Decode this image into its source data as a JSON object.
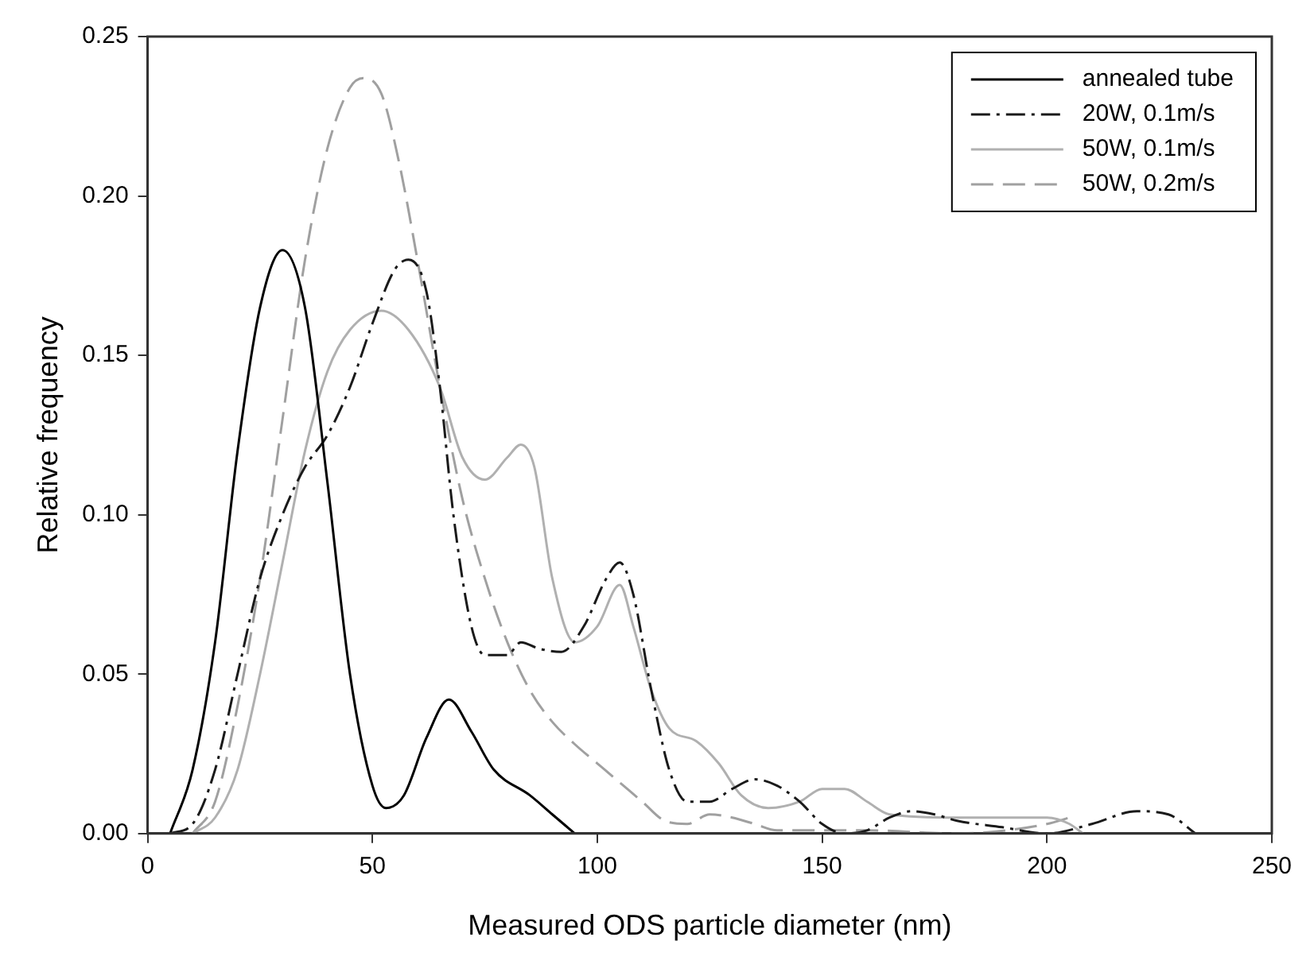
{
  "chart_data": {
    "type": "line",
    "xlabel": "Measured ODS particle diameter (nm)",
    "ylabel": "Relative frequency",
    "xlim": [
      0,
      250
    ],
    "xticks": [
      0,
      50,
      100,
      150,
      200,
      250
    ],
    "ylim": [
      0,
      0.25
    ],
    "yticks": [
      {
        "value": 0,
        "label": "0.00"
      },
      {
        "value": 0.05,
        "label": "0.05"
      },
      {
        "value": 0.1,
        "label": "0.10"
      },
      {
        "value": 0.15,
        "label": "0.15"
      },
      {
        "value": 0.2,
        "label": "0.20"
      },
      {
        "value": 0.25,
        "label": "0.25"
      }
    ],
    "grid": false,
    "legend": "top right",
    "marker": "none",
    "series": [
      {
        "name": "annealed tube",
        "color": "#000000",
        "line_style": "solid",
        "x": [
          5,
          10,
          15,
          20,
          25,
          30,
          35,
          40,
          45,
          50,
          53,
          57,
          62,
          67,
          72,
          77,
          85,
          90,
          95
        ],
        "values": [
          0,
          0.02,
          0.06,
          0.12,
          0.165,
          0.183,
          0.165,
          0.11,
          0.05,
          0.015,
          0.008,
          0.012,
          0.03,
          0.042,
          0.032,
          0.02,
          0.012,
          0.006,
          0
        ]
      },
      {
        "name": "20W, 0.1m/s",
        "color": "#1a1a1a",
        "line_style": "dashdot",
        "x": [
          5,
          10,
          15,
          20,
          25,
          30,
          35,
          40,
          45,
          50,
          55,
          58,
          62,
          65,
          68,
          72,
          75,
          80,
          83,
          87,
          92,
          97,
          102,
          105,
          108,
          112,
          116,
          120,
          125,
          130,
          135,
          140,
          145,
          150,
          155,
          160,
          165,
          170,
          175,
          180,
          190,
          200,
          210,
          220,
          227,
          233
        ],
        "values": [
          0,
          0.003,
          0.02,
          0.05,
          0.08,
          0.1,
          0.115,
          0.125,
          0.14,
          0.16,
          0.177,
          0.18,
          0.17,
          0.14,
          0.1,
          0.065,
          0.056,
          0.056,
          0.06,
          0.058,
          0.057,
          0.065,
          0.08,
          0.085,
          0.075,
          0.045,
          0.02,
          0.01,
          0.01,
          0.014,
          0.017,
          0.015,
          0.01,
          0.003,
          0,
          0.001,
          0.005,
          0.007,
          0.006,
          0.004,
          0.002,
          0,
          0.003,
          0.007,
          0.006,
          0
        ]
      },
      {
        "name": "50W, 0.1m/s",
        "color": "#b0b0b0",
        "line_style": "solid",
        "x": [
          10,
          15,
          20,
          25,
          30,
          35,
          40,
          45,
          52,
          58,
          65,
          70,
          75,
          80,
          83,
          86,
          90,
          95,
          100,
          105,
          108,
          112,
          116,
          122,
          127,
          132,
          138,
          145,
          150,
          155,
          160,
          165,
          180,
          200,
          205,
          208
        ],
        "values": [
          0,
          0.005,
          0.02,
          0.05,
          0.085,
          0.12,
          0.145,
          0.158,
          0.164,
          0.158,
          0.14,
          0.118,
          0.111,
          0.118,
          0.122,
          0.115,
          0.08,
          0.06,
          0.065,
          0.078,
          0.065,
          0.045,
          0.033,
          0.029,
          0.022,
          0.012,
          0.008,
          0.01,
          0.014,
          0.014,
          0.01,
          0.006,
          0.005,
          0.005,
          0.003,
          0
        ]
      },
      {
        "name": "50W, 0.2m/s",
        "color": "#a0a0a0",
        "line_style": "dashed",
        "x": [
          10,
          15,
          20,
          25,
          30,
          35,
          40,
          45,
          48,
          52,
          56,
          60,
          65,
          70,
          75,
          80,
          85,
          90,
          95,
          100,
          105,
          110,
          115,
          120,
          125,
          130,
          135,
          140,
          160,
          180,
          200,
          205
        ],
        "values": [
          0,
          0.01,
          0.04,
          0.08,
          0.13,
          0.18,
          0.215,
          0.234,
          0.237,
          0.232,
          0.21,
          0.18,
          0.14,
          0.105,
          0.08,
          0.06,
          0.045,
          0.035,
          0.028,
          0.022,
          0.016,
          0.01,
          0.004,
          0.003,
          0.006,
          0.005,
          0.003,
          0.001,
          0.001,
          0,
          0.003,
          0.005
        ]
      }
    ]
  }
}
